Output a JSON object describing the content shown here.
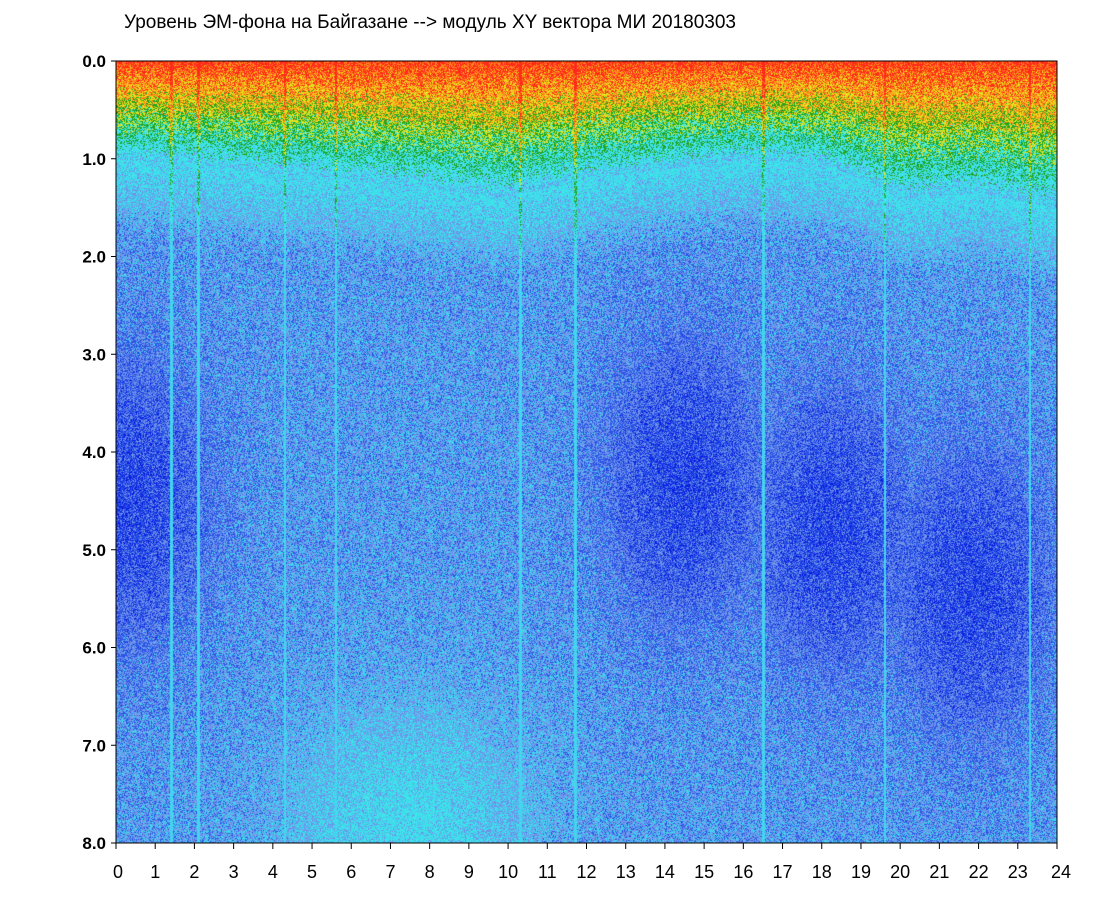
{
  "chart_data": {
    "type": "heatmap",
    "title": "Уровень ЭМ-фона на Байгазане  -->  модуль XY вектора МИ  20180303",
    "xlabel": "",
    "ylabel": "",
    "xlim": [
      0,
      24
    ],
    "ylim": [
      0,
      8
    ],
    "y_axis_inverted": true,
    "x_ticks": [
      "0",
      "1",
      "2",
      "3",
      "4",
      "5",
      "6",
      "7",
      "8",
      "9",
      "10",
      "11",
      "12",
      "13",
      "14",
      "15",
      "16",
      "17",
      "18",
      "19",
      "20",
      "21",
      "22",
      "23",
      "24"
    ],
    "y_ticks": [
      "0.0",
      "1.0",
      "2.0",
      "3.0",
      "4.0",
      "5.0",
      "6.0",
      "7.0",
      "8.0"
    ],
    "grid": false,
    "legend": "none",
    "colormap": [
      "#0a1ee0",
      "#2c55e6",
      "#6f92e9",
      "#43d4ee",
      "#3ee8e8",
      "#1fa51f",
      "#e6e31c",
      "#ff8a1a",
      "#ff2a1a"
    ],
    "hot_band_edge": [
      {
        "x": 0,
        "y": 1.0
      },
      {
        "x": 2,
        "y": 1.05
      },
      {
        "x": 4,
        "y": 1.15
      },
      {
        "x": 6,
        "y": 1.2
      },
      {
        "x": 8,
        "y": 1.3
      },
      {
        "x": 10,
        "y": 1.4
      },
      {
        "x": 12,
        "y": 1.2
      },
      {
        "x": 14,
        "y": 1.1
      },
      {
        "x": 16,
        "y": 1.0
      },
      {
        "x": 18,
        "y": 1.05
      },
      {
        "x": 19,
        "y": 1.2
      },
      {
        "x": 20,
        "y": 1.4
      },
      {
        "x": 22,
        "y": 1.35
      },
      {
        "x": 24,
        "y": 1.5
      }
    ],
    "dark_regions": [
      {
        "x": 0.3,
        "y": 4.5
      },
      {
        "x": 14.5,
        "y": 4.3
      },
      {
        "x": 18.3,
        "y": 4.8
      },
      {
        "x": 21.8,
        "y": 5.4
      }
    ],
    "vertical_streaks": [
      1.4,
      2.1,
      4.3,
      5.6,
      10.3,
      11.7,
      16.5,
      19.6,
      23.3
    ]
  }
}
